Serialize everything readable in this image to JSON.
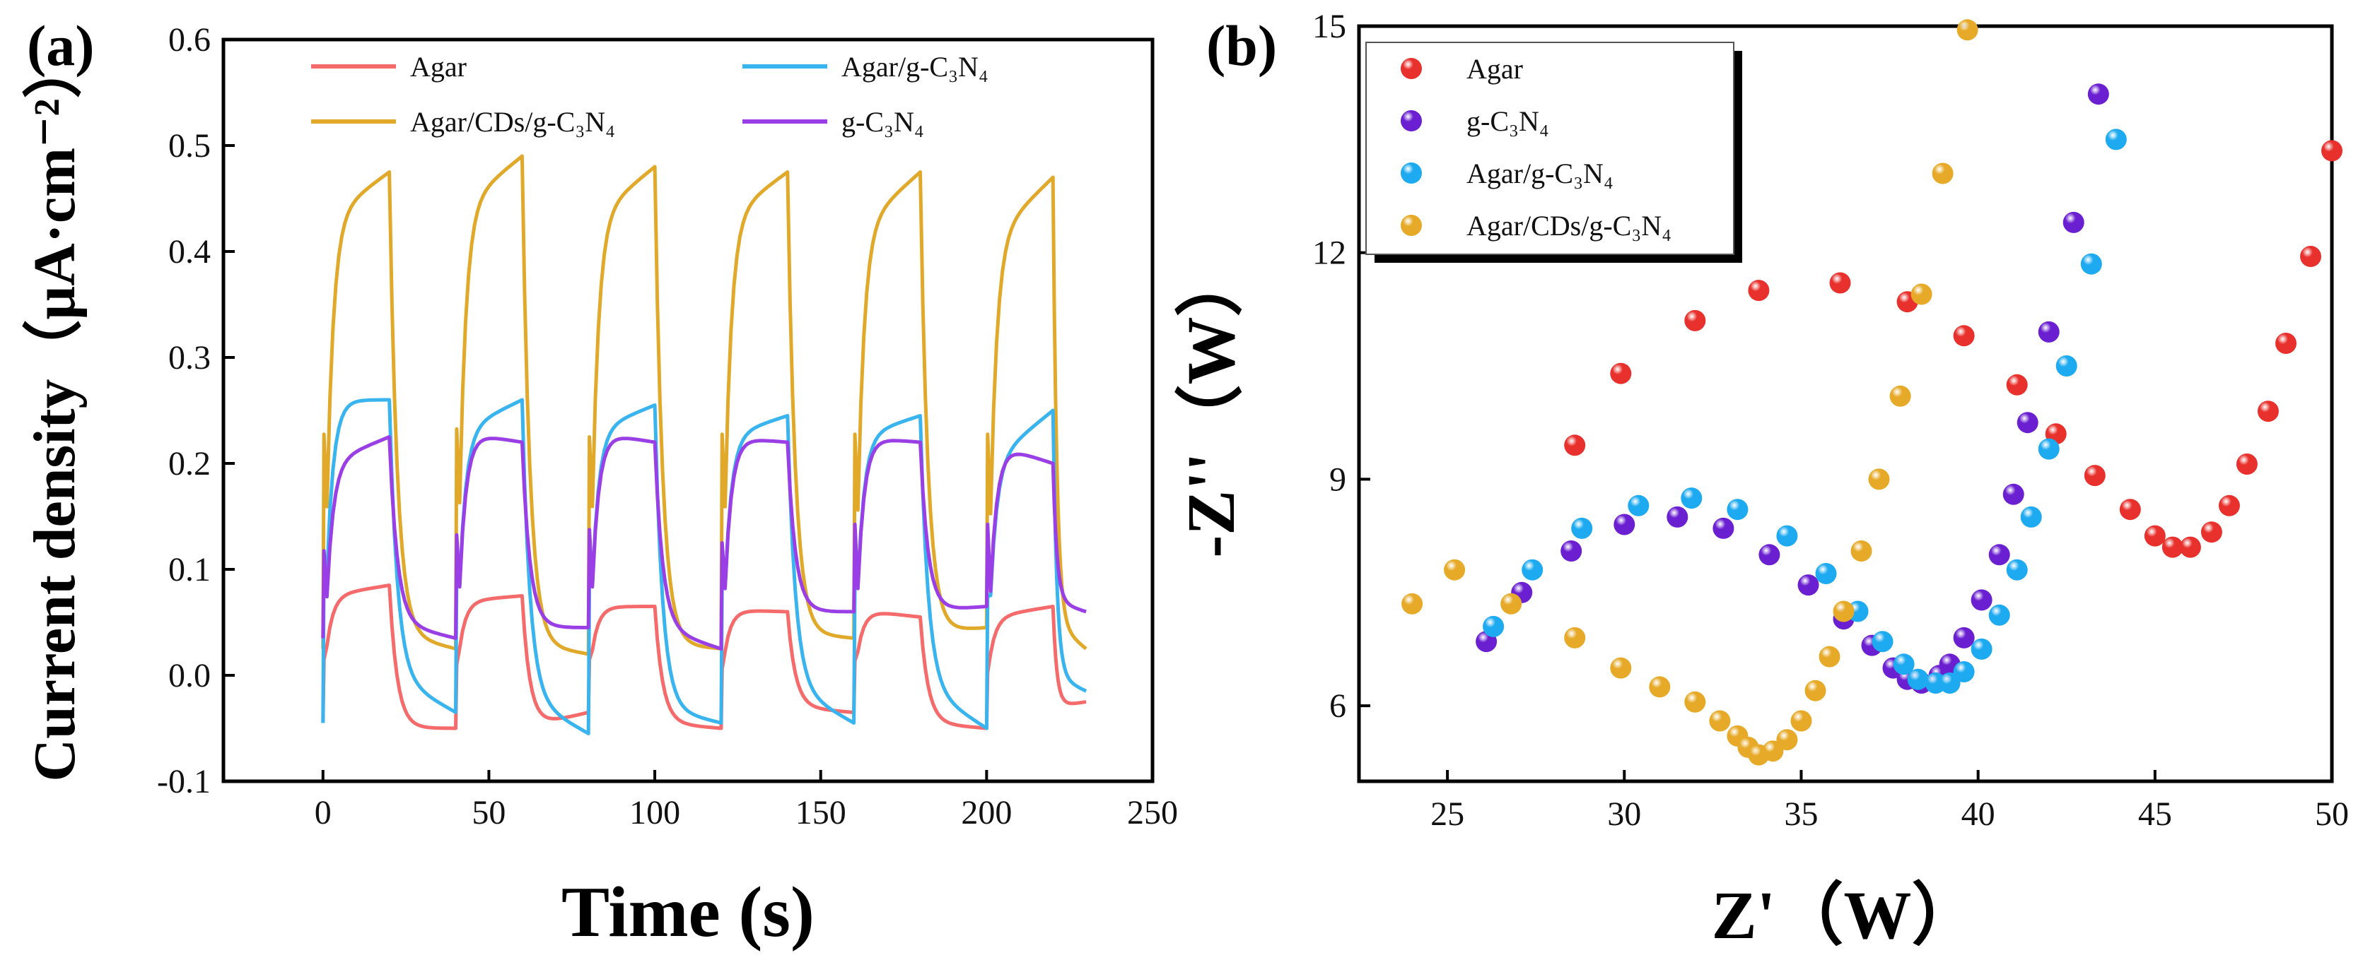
{
  "panels": [
    {
      "label": "(a)",
      "xlabel": "Time (s)",
      "ylabel": "Current density（μA·cm⁻²）",
      "legend": [
        {
          "name": "Agar",
          "color": "#f56b6b"
        },
        {
          "name": "Agar/g-C₃N₄",
          "color": "#39b4ee"
        },
        {
          "name": "Agar/CDs/g-C₃N₄",
          "color": "#e0a92a"
        },
        {
          "name": "g-C₃N₄",
          "color": "#9a3fe6"
        }
      ]
    },
    {
      "label": "(b)",
      "xlabel": "Z'（W）",
      "ylabel": "-Z''（W）",
      "legend": [
        {
          "name": "Agar",
          "color": "#e8302c"
        },
        {
          "name": "g-C₃N₄",
          "color": "#6a1fd0"
        },
        {
          "name": "Agar/g-C₃N₄",
          "color": "#1eaaf0"
        },
        {
          "name": "Agar/CDs/g-C₃N₄",
          "color": "#e6aa28"
        }
      ]
    }
  ],
  "chart_data": [
    {
      "type": "line",
      "title": "",
      "xlabel": "Time (s)",
      "ylabel": "Current density（μA·cm⁻²）",
      "xlim": [
        -30,
        250
      ],
      "ylim": [
        -0.1,
        0.6
      ],
      "xticks": [
        0,
        50,
        100,
        150,
        200,
        250
      ],
      "yticks": [
        -0.1,
        0.0,
        0.1,
        0.2,
        0.3,
        0.4,
        0.5,
        0.6
      ],
      "light_on_intervals": [
        [
          0,
          20
        ],
        [
          40,
          60
        ],
        [
          80,
          100
        ],
        [
          120,
          140
        ],
        [
          160,
          180
        ],
        [
          200,
          220
        ]
      ],
      "end_time": 230,
      "series": [
        {
          "name": "Agar",
          "color": "#f56b6b",
          "on_start": [
            0.075,
            0.07,
            0.065,
            0.062,
            0.062,
            0.055
          ],
          "on_end": [
            0.085,
            0.075,
            0.065,
            0.06,
            0.055,
            0.065
          ],
          "off_dip": [
            -0.05,
            -0.05,
            -0.045,
            -0.03,
            -0.045,
            -0.03
          ],
          "off_end": [
            -0.05,
            -0.035,
            -0.05,
            -0.035,
            -0.05,
            -0.025
          ]
        },
        {
          "name": "Agar/CDs/g-C₃N₄",
          "color": "#e0a92a",
          "on_start": [
            0.43,
            0.44,
            0.43,
            0.43,
            0.42,
            0.41
          ],
          "on_end": [
            0.475,
            0.49,
            0.48,
            0.475,
            0.475,
            0.47
          ],
          "off_dip": [
            0.04,
            0.03,
            0.03,
            0.04,
            0.04,
            0.05
          ],
          "off_end": [
            0.025,
            0.02,
            0.025,
            0.035,
            0.045,
            0.025
          ]
        },
        {
          "name": "Agar/g-C₃N₄",
          "color": "#39b4ee",
          "on_start": [
            0.26,
            0.23,
            0.23,
            0.225,
            0.225,
            0.2
          ],
          "on_end": [
            0.26,
            0.26,
            0.255,
            0.245,
            0.245,
            0.25
          ],
          "off_dip": [
            0.0,
            -0.02,
            -0.03,
            -0.01,
            -0.01,
            0.0
          ],
          "off_end": [
            -0.035,
            -0.055,
            -0.045,
            -0.045,
            -0.05,
            -0.015
          ]
        },
        {
          "name": "g-C₃N₄",
          "color": "#9a3fe6",
          "on_start": [
            0.2,
            0.23,
            0.23,
            0.225,
            0.225,
            0.22
          ],
          "on_end": [
            0.225,
            0.22,
            0.22,
            0.22,
            0.22,
            0.2
          ],
          "off_dip": [
            0.05,
            0.045,
            0.045,
            0.06,
            0.06,
            0.07
          ],
          "off_end": [
            0.035,
            0.045,
            0.025,
            0.06,
            0.065,
            0.06
          ]
        }
      ]
    },
    {
      "type": "scatter",
      "title": "",
      "xlabel": "Z'（W）",
      "ylabel": "-Z''（W）",
      "xlim": [
        22.5,
        50
      ],
      "ylim": [
        5,
        15
      ],
      "xticks": [
        25,
        30,
        35,
        40,
        45,
        50
      ],
      "yticks": [
        6,
        9,
        12,
        15
      ],
      "legend_position": "top-left",
      "series": [
        {
          "name": "Agar",
          "color": "#e8302c",
          "points": [
            [
              28.6,
              9.45
            ],
            [
              29.9,
              10.4
            ],
            [
              32.0,
              11.1
            ],
            [
              33.8,
              11.5
            ],
            [
              36.1,
              11.6
            ],
            [
              38.0,
              11.35
            ],
            [
              39.6,
              10.9
            ],
            [
              41.1,
              10.25
            ],
            [
              42.2,
              9.6
            ],
            [
              43.3,
              9.05
            ],
            [
              44.3,
              8.6
            ],
            [
              45.0,
              8.25
            ],
            [
              45.5,
              8.1
            ],
            [
              46.0,
              8.1
            ],
            [
              46.6,
              8.3
            ],
            [
              47.1,
              8.65
            ],
            [
              47.6,
              9.2
            ],
            [
              48.2,
              9.9
            ],
            [
              48.7,
              10.8
            ],
            [
              49.4,
              11.95
            ],
            [
              50.0,
              13.35
            ]
          ]
        },
        {
          "name": "g-C₃N₄",
          "color": "#6a1fd0",
          "points": [
            [
              26.1,
              6.85
            ],
            [
              27.1,
              7.5
            ],
            [
              28.5,
              8.05
            ],
            [
              30.0,
              8.4
            ],
            [
              31.5,
              8.5
            ],
            [
              32.8,
              8.35
            ],
            [
              34.1,
              8.0
            ],
            [
              35.2,
              7.6
            ],
            [
              36.2,
              7.15
            ],
            [
              37.0,
              6.8
            ],
            [
              37.6,
              6.5
            ],
            [
              38.0,
              6.35
            ],
            [
              38.4,
              6.3
            ],
            [
              38.9,
              6.4
            ],
            [
              39.2,
              6.55
            ],
            [
              39.6,
              6.9
            ],
            [
              40.1,
              7.4
            ],
            [
              40.6,
              8.0
            ],
            [
              41.0,
              8.8
            ],
            [
              41.4,
              9.75
            ],
            [
              42.0,
              10.95
            ],
            [
              42.7,
              12.4
            ],
            [
              43.4,
              14.1
            ]
          ]
        },
        {
          "name": "Agar/g-C₃N₄",
          "color": "#1eaaf0",
          "points": [
            [
              26.3,
              7.05
            ],
            [
              27.4,
              7.8
            ],
            [
              28.8,
              8.35
            ],
            [
              30.4,
              8.65
            ],
            [
              31.9,
              8.75
            ],
            [
              33.2,
              8.6
            ],
            [
              34.6,
              8.25
            ],
            [
              35.7,
              7.75
            ],
            [
              36.6,
              7.25
            ],
            [
              37.3,
              6.85
            ],
            [
              37.9,
              6.55
            ],
            [
              38.3,
              6.35
            ],
            [
              38.8,
              6.3
            ],
            [
              39.2,
              6.3
            ],
            [
              39.6,
              6.45
            ],
            [
              40.1,
              6.75
            ],
            [
              40.6,
              7.2
            ],
            [
              41.1,
              7.8
            ],
            [
              41.5,
              8.5
            ],
            [
              42.0,
              9.4
            ],
            [
              42.5,
              10.5
            ],
            [
              43.2,
              11.85
            ],
            [
              43.9,
              13.5
            ]
          ]
        },
        {
          "name": "Agar/CDs/g-C₃N₄",
          "color": "#e6aa28",
          "points": [
            [
              24.0,
              7.35
            ],
            [
              25.2,
              7.8
            ],
            [
              26.8,
              7.35
            ],
            [
              28.6,
              6.9
            ],
            [
              29.9,
              6.5
            ],
            [
              31.0,
              6.25
            ],
            [
              32.0,
              6.05
            ],
            [
              32.7,
              5.8
            ],
            [
              33.2,
              5.6
            ],
            [
              33.5,
              5.45
            ],
            [
              33.8,
              5.35
            ],
            [
              34.2,
              5.4
            ],
            [
              34.6,
              5.55
            ],
            [
              35.0,
              5.8
            ],
            [
              35.4,
              6.2
            ],
            [
              35.8,
              6.65
            ],
            [
              36.2,
              7.25
            ],
            [
              36.7,
              8.05
            ],
            [
              37.2,
              9.0
            ],
            [
              37.8,
              10.1
            ],
            [
              38.4,
              11.45
            ],
            [
              39.0,
              13.05
            ],
            [
              39.7,
              14.95
            ]
          ]
        }
      ]
    }
  ]
}
